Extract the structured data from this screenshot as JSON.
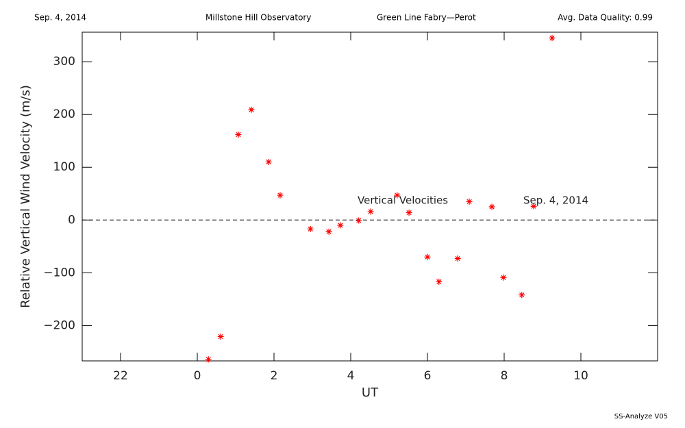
{
  "chart_data": {
    "type": "scatter",
    "header": [
      "Sep. 4, 2014",
      "Millstone Hill Observatory",
      "Green Line Fabry—Perot",
      "Avg. Data Quality: 0.99"
    ],
    "annotations": [
      "Vertical Velocities",
      "Sep. 4, 2014"
    ],
    "footer": "SS-Analyze V05",
    "xlabel": "UT",
    "ylabel": "Relative Vertical Wind Velocity (m/s)",
    "xlim": [
      -3,
      12
    ],
    "ylim": [
      -267,
      356
    ],
    "xticks": [
      {
        "value": -2,
        "label": "22"
      },
      0,
      2,
      4,
      6,
      8,
      10
    ],
    "yticks": [
      {
        "value": -200,
        "label": "−200"
      },
      {
        "value": -100,
        "label": "−100"
      },
      0,
      100,
      200,
      300
    ],
    "reference_line": 0,
    "series": [
      {
        "name": "Vertical Velocities",
        "color": "#ff0000",
        "x": [
          0.29,
          0.61,
          1.07,
          1.41,
          1.86,
          2.16,
          2.95,
          3.43,
          3.73,
          4.21,
          4.52,
          5.21,
          5.52,
          6.0,
          6.3,
          6.79,
          7.09,
          7.68,
          7.98,
          8.46,
          8.77,
          9.25
        ],
        "values": [
          -264,
          -221,
          162,
          209,
          110,
          47,
          -17,
          -22,
          -10,
          -1,
          16,
          47,
          14,
          -70,
          -117,
          -73,
          35,
          25,
          -109,
          -142,
          26,
          345
        ]
      }
    ]
  }
}
